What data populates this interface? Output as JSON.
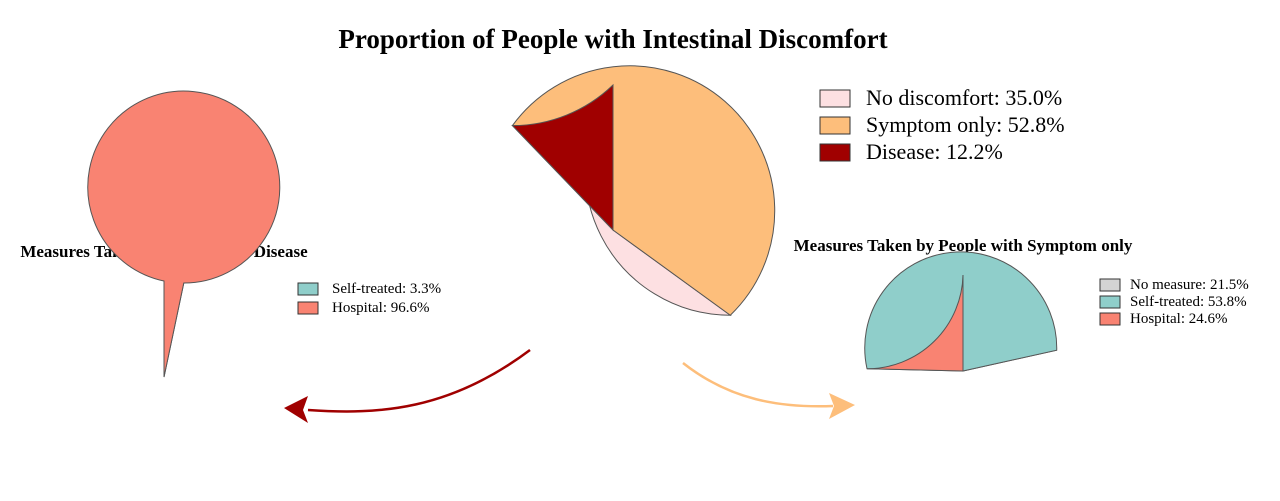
{
  "chart_data": [
    {
      "type": "pie",
      "title": "Proportion of People with Intestinal Discomfort",
      "series": [
        {
          "label": "No discomfort: 35.0%",
          "value": 35.0,
          "color": "#fde0e2"
        },
        {
          "label": "Symptom only: 52.8%",
          "value": 52.8,
          "color": "#fdbe7b"
        },
        {
          "label": "Disease: 12.2%",
          "value": 12.2,
          "color": "#a00000"
        }
      ],
      "legend_position": "top-right"
    },
    {
      "type": "pie",
      "title": "Measures Taken by People with Disease",
      "series": [
        {
          "label": "Self-treated: 3.3%",
          "value": 3.3,
          "color": "#8fceca"
        },
        {
          "label": "Hospital: 96.6%",
          "value": 96.6,
          "color": "#f98372"
        }
      ],
      "legend_position": "top-right"
    },
    {
      "type": "pie",
      "title": "Measures Taken by People with Symptom only",
      "series": [
        {
          "label": "No measure: 21.5%",
          "value": 21.5,
          "color": "#d4d4d4"
        },
        {
          "label": "Self-treated: 53.8%",
          "value": 53.8,
          "color": "#8fceca"
        },
        {
          "label": "Hospital: 24.6%",
          "value": 24.6,
          "color": "#f98372"
        }
      ],
      "legend_position": "top-right"
    }
  ],
  "colors": {
    "disease_arrow": "#a00000",
    "symptom_arrow": "#fdbe7b"
  }
}
